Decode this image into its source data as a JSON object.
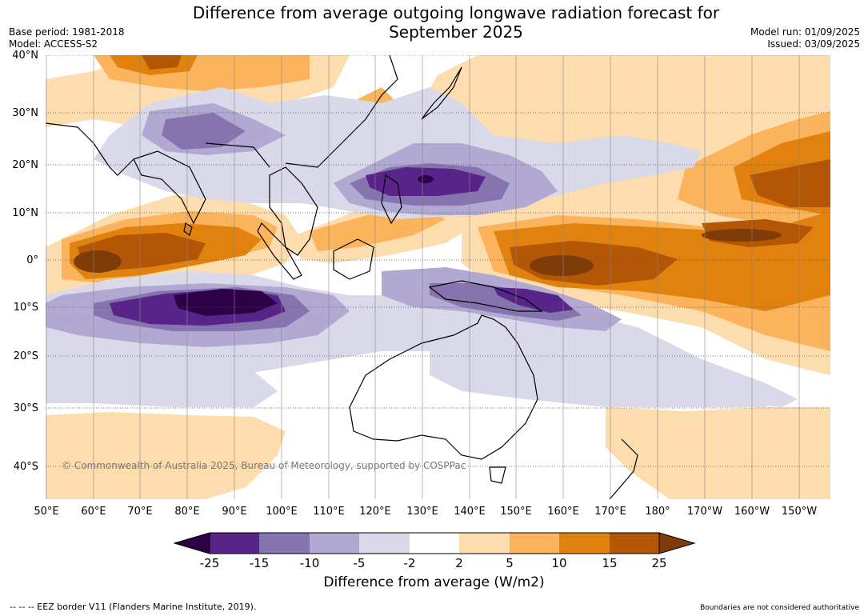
{
  "title_line1": "Difference from average outgoing longwave radiation forecast for",
  "title_line2": "September 2025",
  "base_period": "Base period: 1981-2018",
  "model": "Model: ACCESS-S2",
  "model_run": "Model run: 01/09/2025",
  "issued": "Issued: 03/09/2025",
  "lat_labels": [
    "40°N",
    "30°N",
    "20°N",
    "10°N",
    "0°",
    "10°S",
    "20°S",
    "30°S",
    "40°S"
  ],
  "lon_labels": [
    "50°E",
    "60°E",
    "70°E",
    "80°E",
    "90°E",
    "100°E",
    "110°E",
    "120°E",
    "130°E",
    "140°E",
    "150°E",
    "160°E",
    "170°E",
    "180°",
    "170°W",
    "160°W",
    "150°W"
  ],
  "copyright": "© Commonwealth of Australia 2025, Bureau of Meteorology, supported by COSPPac",
  "colorbar": {
    "title": "Difference from average (W/m2)",
    "ticks": [
      "-25",
      "-15",
      "-10",
      "-5",
      "-2",
      "2",
      "5",
      "10",
      "15",
      "25"
    ],
    "colors": [
      "#2d0047",
      "#58248a",
      "#8574b0",
      "#b1a9d1",
      "#d9d9ea",
      "#ffffff",
      "#fddcad",
      "#fbb35c",
      "#e1820f",
      "#b35606",
      "#7f3b08"
    ]
  },
  "footer_left": "-- -- -- EEZ border V11 (Flanders Marine Institute, 2019).",
  "footer_right": "Boundaries are not considered authoritative"
}
